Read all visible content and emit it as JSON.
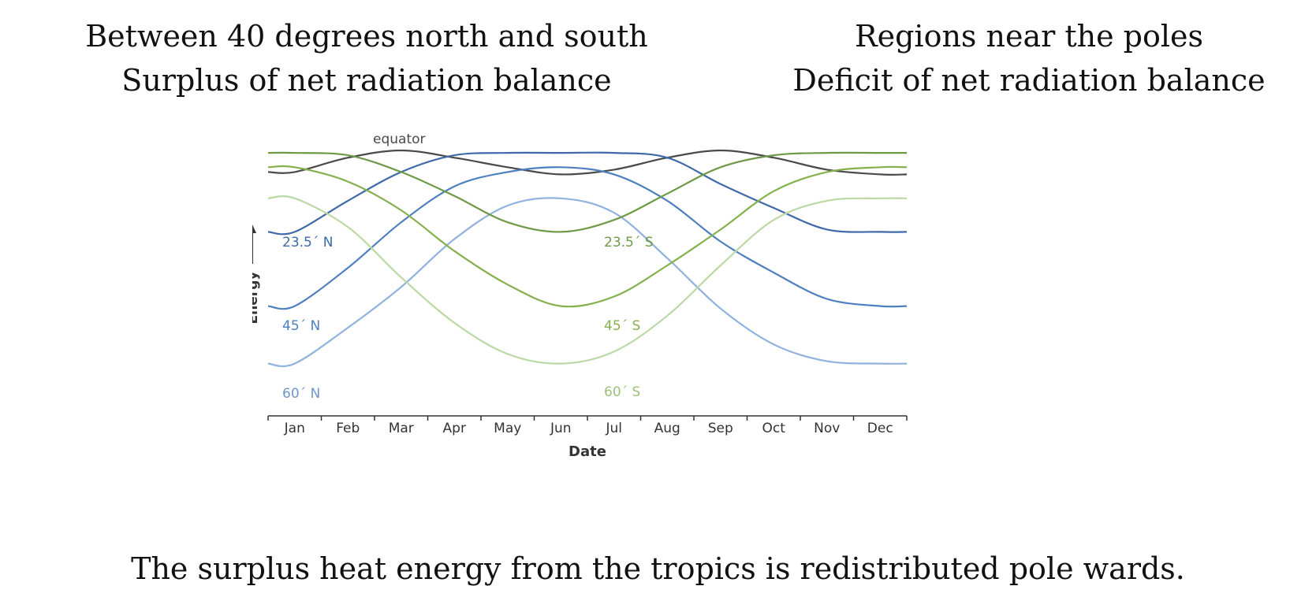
{
  "header_left": {
    "line1": "Between 40 degrees north and south",
    "line2": "Surplus of net radiation balance"
  },
  "header_right": {
    "line1": "Regions near the poles",
    "line2": "Deficit of net radiation balance"
  },
  "caption": "The surplus heat energy from the tropics is redistributed pole wards.",
  "chart_data": {
    "type": "line",
    "title": "",
    "xlabel": "Date",
    "ylabel": "Energy",
    "x": [
      "Jan",
      "Feb",
      "Mar",
      "Apr",
      "May",
      "Jun",
      "Jul",
      "Aug",
      "Sep",
      "Oct",
      "Nov",
      "Dec"
    ],
    "ylim": [
      0,
      100
    ],
    "grid": false,
    "legend": "inline labels",
    "series": [
      {
        "name": "equator",
        "color": "#4a4a4a",
        "values": [
          90,
          96,
          99,
          96,
          92,
          89,
          91,
          96,
          99,
          96,
          91,
          89
        ]
      },
      {
        "name": "23.5° N",
        "color": "#3f69a8",
        "values": [
          65,
          78,
          90,
          97,
          98,
          98,
          98,
          96,
          85,
          75,
          66,
          65
        ]
      },
      {
        "name": "45° N",
        "color": "#4e7fbf",
        "values": [
          34,
          50,
          69,
          84,
          90,
          92,
          89,
          78,
          61,
          48,
          37,
          34
        ]
      },
      {
        "name": "60° N",
        "color": "#8fb2de",
        "values": [
          10,
          25,
          42,
          62,
          76,
          79,
          73,
          54,
          33,
          18,
          11,
          10
        ]
      },
      {
        "name": "23.5° S",
        "color": "#6e9a46",
        "values": [
          98,
          97,
          90,
          80,
          69,
          65,
          70,
          81,
          92,
          97,
          98,
          98
        ]
      },
      {
        "name": "45° S",
        "color": "#86b04e",
        "values": [
          92,
          86,
          74,
          57,
          43,
          34,
          38,
          51,
          66,
          82,
          90,
          92
        ]
      },
      {
        "name": "60° S",
        "color": "#bcd8a4",
        "values": [
          79,
          67,
          46,
          27,
          14,
          10,
          15,
          30,
          51,
          70,
          78,
          79
        ]
      }
    ],
    "annotations": [
      "equator",
      "23.5° N",
      "45° N",
      "60° N",
      "23.5° S",
      "45° S",
      "60° S"
    ],
    "curve_labels": {
      "equator": "equator",
      "n235": "23.5´ N",
      "n45": "45´ N",
      "n60": "60´ N",
      "s235": "23.5´ S",
      "s45": "45´ S",
      "s60": "60´ S"
    }
  }
}
